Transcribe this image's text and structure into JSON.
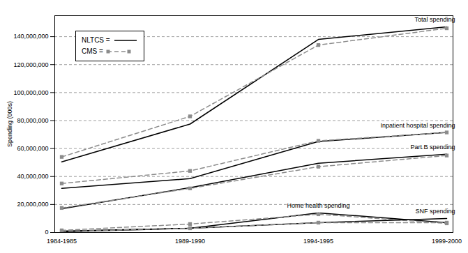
{
  "chart_data": {
    "type": "line",
    "y_label": "Spending (000s)",
    "categories": [
      "1984-1985",
      "1989-1990",
      "1994-1995",
      "1999-2000"
    ],
    "ylim": [
      0,
      155000000
    ],
    "yticks": [
      {
        "value": 0,
        "label": "0"
      },
      {
        "value": 20000000,
        "label": "20,000,000"
      },
      {
        "value": 40000000,
        "label": "40,000,000"
      },
      {
        "value": 60000000,
        "label": "60,000,000"
      },
      {
        "value": 80000000,
        "label": "80,000,000"
      },
      {
        "value": 100000000,
        "label": "100,000,000"
      },
      {
        "value": 120000000,
        "label": "120,000,000"
      },
      {
        "value": 140000000,
        "label": "140,000,000"
      }
    ],
    "grid": true,
    "legend": "upper left",
    "series": [
      {
        "name": "NLTCS =",
        "color": "#000000",
        "line_style": "solid",
        "marker": "none"
      },
      {
        "name": "CMS =",
        "color": "#8c8c8c",
        "line_style": "dashed",
        "marker": "square"
      }
    ],
    "measures": [
      {
        "label": "Total spending",
        "values": [
          [
            50500000,
            77500000,
            138000000,
            147000000
          ],
          [
            54000000,
            83000000,
            134000000,
            146000000
          ]
        ]
      },
      {
        "label": "Inpatient hospital spending",
        "values": [
          [
            31500000,
            38500000,
            65000000,
            71500000
          ],
          [
            35000000,
            44000000,
            65500000,
            71500000
          ]
        ]
      },
      {
        "label": "Part B spending",
        "values": [
          [
            17000000,
            32000000,
            49500000,
            56000000
          ],
          [
            17500000,
            31500000,
            47000000,
            55000000
          ]
        ]
      },
      {
        "label": "Home health spending",
        "values": [
          [
            1000000,
            3000000,
            14000000,
            7000000
          ],
          [
            1500000,
            6000000,
            13000000,
            6500000
          ]
        ]
      },
      {
        "label": "SNF spending",
        "values": [
          [
            500000,
            3000000,
            7000000,
            10000000
          ],
          [
            800000,
            3000000,
            7000000,
            7000000
          ]
        ]
      }
    ]
  }
}
